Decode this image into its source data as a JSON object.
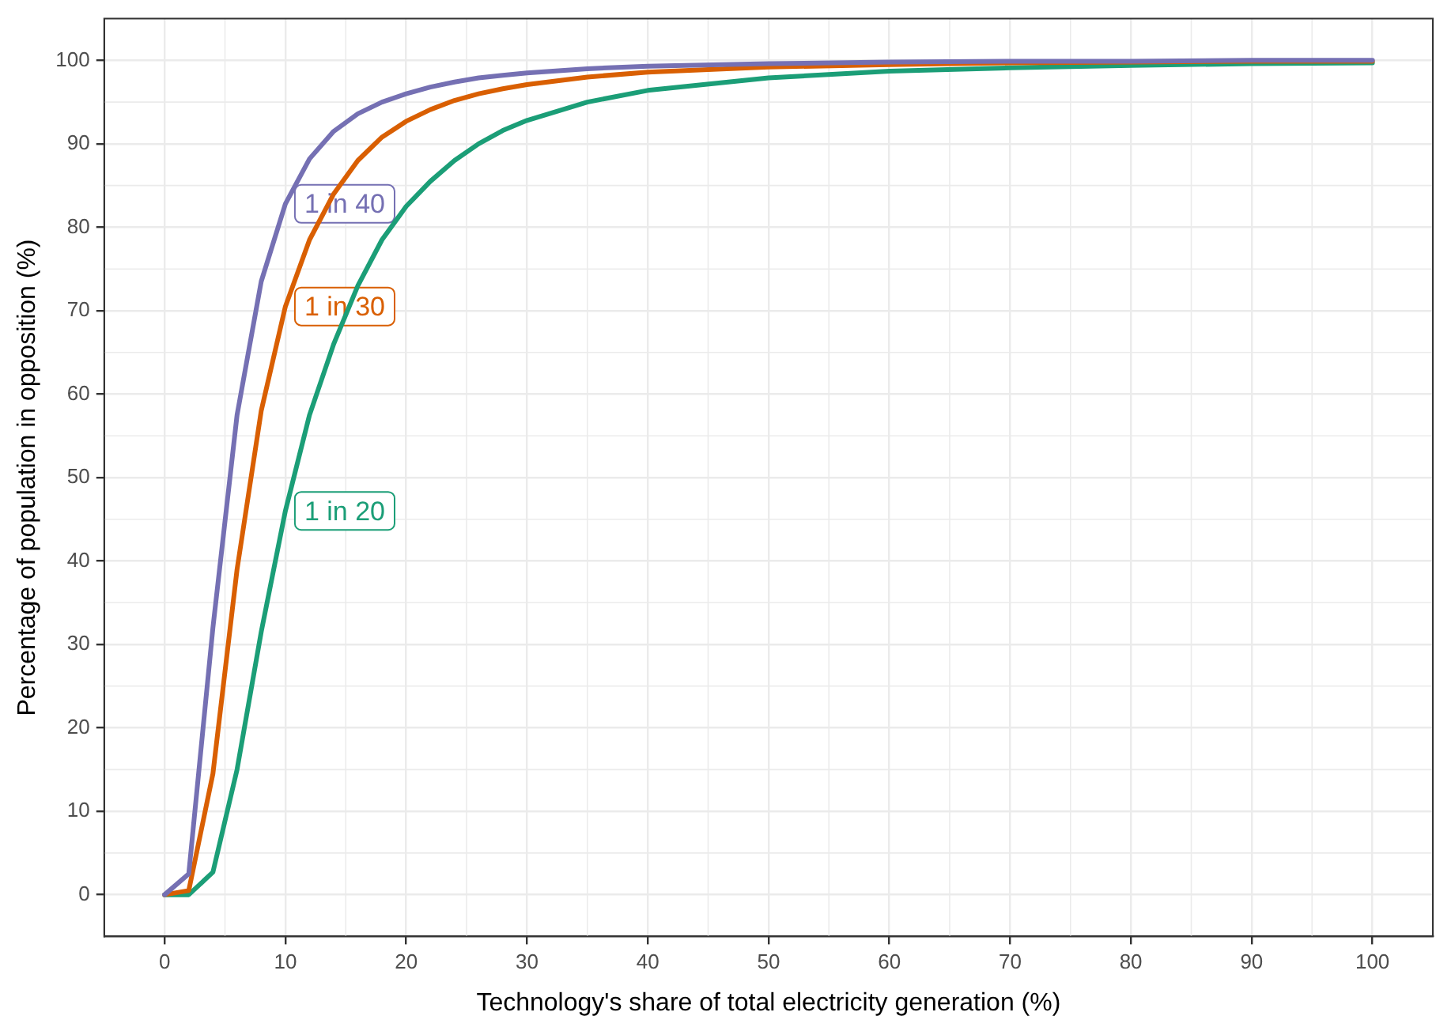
{
  "chart_data": {
    "type": "line",
    "xlabel": "Technology's share of total electricity generation (%)",
    "ylabel": "Percentage of population in opposition (%)",
    "x": [
      0,
      2,
      4,
      6,
      8,
      10,
      12,
      14,
      16,
      18,
      20,
      22,
      24,
      26,
      28,
      30,
      35,
      40,
      50,
      60,
      70,
      80,
      90,
      100
    ],
    "series": [
      {
        "name": "1 in 40",
        "color": "#7570b3",
        "values": [
          0,
          2.5,
          32,
          57.5,
          73.5,
          82.8,
          88.2,
          91.5,
          93.6,
          95.0,
          96.0,
          96.8,
          97.4,
          97.9,
          98.2,
          98.5,
          99.0,
          99.3,
          99.6,
          99.8,
          99.9,
          99.9,
          100,
          100
        ]
      },
      {
        "name": "1 in 30",
        "color": "#d95f02",
        "values": [
          0,
          0.5,
          14.5,
          39,
          58,
          70.5,
          78.5,
          84,
          88,
          90.8,
          92.7,
          94.1,
          95.2,
          96.0,
          96.6,
          97.1,
          98.0,
          98.6,
          99.2,
          99.5,
          99.7,
          99.8,
          99.9,
          99.9
        ]
      },
      {
        "name": "1 in 20",
        "color": "#1b9e77",
        "values": [
          0,
          0,
          2.7,
          15,
          31.5,
          46,
          57.5,
          66,
          73,
          78.5,
          82.5,
          85.5,
          88,
          90,
          91.6,
          92.8,
          95,
          96.4,
          97.9,
          98.7,
          99.1,
          99.4,
          99.6,
          99.7
        ]
      }
    ],
    "xlim": [
      -5,
      105
    ],
    "ylim": [
      -5,
      105
    ],
    "xticks": [
      0,
      10,
      20,
      30,
      40,
      50,
      60,
      70,
      80,
      90,
      100
    ],
    "yticks": [
      0,
      10,
      20,
      30,
      40,
      50,
      60,
      70,
      80,
      90,
      100
    ],
    "grid": true,
    "legend": false,
    "marker": "none",
    "line_style": "solid"
  }
}
